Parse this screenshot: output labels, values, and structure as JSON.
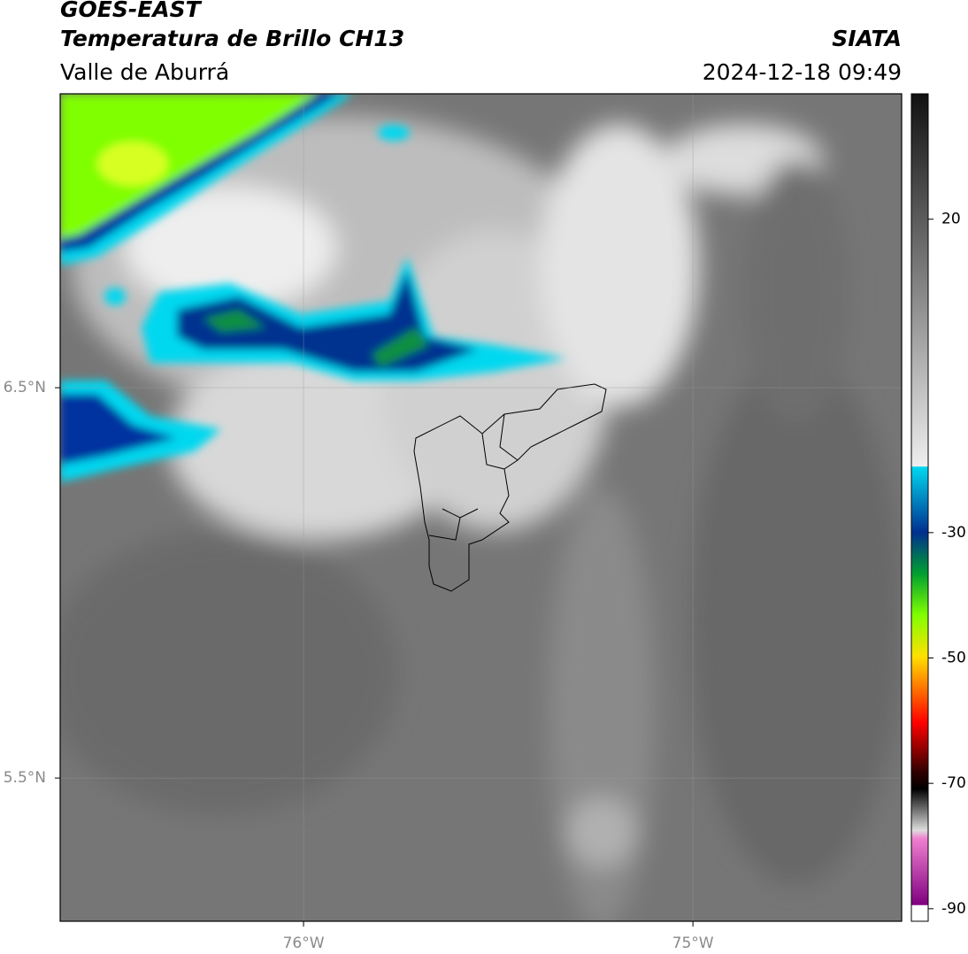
{
  "header": {
    "title": "GOES-EAST",
    "subtitle": "Temperatura de Brillo CH13",
    "region": "Valle de Aburrá",
    "source": "SIATA",
    "datetime": "2024-12-18 09:49"
  },
  "map": {
    "xlim": [
      -76.625,
      -74.464
    ],
    "ylim": [
      5.133,
      7.253
    ],
    "xticks": [
      {
        "value": -76,
        "label": "76°W"
      },
      {
        "value": -75,
        "label": "75°W"
      }
    ],
    "yticks": [
      {
        "value": 6.5,
        "label": "6.5°N"
      },
      {
        "value": 5.5,
        "label": "5.5°N"
      }
    ],
    "grid": true
  },
  "colorbar": {
    "lim": [
      -92,
      40
    ],
    "ticks": [
      20,
      -30,
      -50,
      -70,
      -90
    ]
  }
}
